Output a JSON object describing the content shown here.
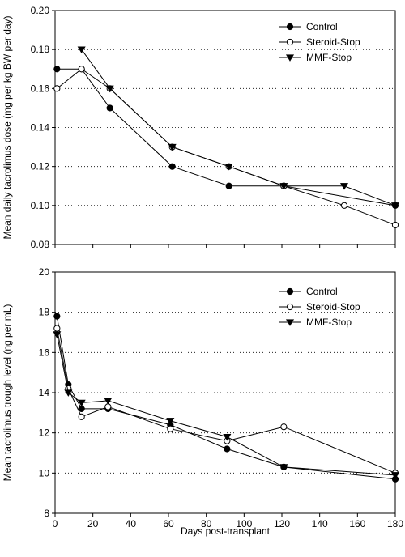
{
  "chart_data": [
    {
      "type": "line",
      "title": "",
      "xlabel": "",
      "ylabel": "Mean daily tacrolimus dose (mg per kg BW per day)",
      "xlim": [
        0,
        180
      ],
      "ylim": [
        0.08,
        0.2
      ],
      "x_ticks": [],
      "y_ticks": [
        "0.08",
        "0.10",
        "0.12",
        "0.14",
        "0.16",
        "0.18",
        "0.20"
      ],
      "grid": "horizontal dotted",
      "legend": "top-right",
      "series": [
        {
          "name": "Control",
          "marker": "filled-circle",
          "x": [
            1,
            14,
            29,
            62,
            92,
            121,
            180
          ],
          "y": [
            0.17,
            0.17,
            0.15,
            0.12,
            0.11,
            0.11,
            0.1
          ]
        },
        {
          "name": "Steroid-Stop",
          "marker": "open-circle",
          "x": [
            1,
            14,
            29,
            62,
            92,
            121,
            153,
            180
          ],
          "y": [
            0.16,
            0.17,
            0.16,
            0.13,
            0.12,
            0.11,
            0.1,
            0.09
          ]
        },
        {
          "name": "MMF-Stop",
          "marker": "filled-triangle-down",
          "x": [
            14,
            29,
            62,
            92,
            121,
            153,
            180
          ],
          "y": [
            0.18,
            0.16,
            0.13,
            0.12,
            0.11,
            0.11,
            0.1
          ]
        }
      ]
    },
    {
      "type": "line",
      "title": "",
      "xlabel": "Days post-transplant",
      "ylabel": "Mean tacrolimus trough level (ng per mL)",
      "xlim": [
        0,
        180
      ],
      "ylim": [
        8,
        20
      ],
      "x_ticks": [
        "0",
        "20",
        "40",
        "60",
        "80",
        "100",
        "120",
        "140",
        "160",
        "180"
      ],
      "y_ticks": [
        "8",
        "10",
        "12",
        "14",
        "16",
        "18",
        "20"
      ],
      "grid": "horizontal dotted",
      "legend": "top-right",
      "series": [
        {
          "name": "Control",
          "marker": "filled-circle",
          "x": [
            1,
            7,
            14,
            28,
            61,
            91,
            121,
            180
          ],
          "y": [
            17.8,
            14.4,
            13.2,
            13.2,
            12.4,
            11.2,
            10.3,
            9.7
          ]
        },
        {
          "name": "Steroid-Stop",
          "marker": "open-circle",
          "x": [
            1,
            7,
            14,
            28,
            61,
            91,
            121,
            180
          ],
          "y": [
            17.2,
            14.2,
            12.8,
            13.3,
            12.2,
            11.6,
            12.3,
            10.0
          ]
        },
        {
          "name": "MMF-Stop",
          "marker": "filled-triangle-down",
          "x": [
            1,
            7,
            14,
            28,
            61,
            91,
            121,
            180
          ],
          "y": [
            16.9,
            14.0,
            13.5,
            13.6,
            12.6,
            11.8,
            10.3,
            9.9
          ]
        }
      ]
    }
  ]
}
